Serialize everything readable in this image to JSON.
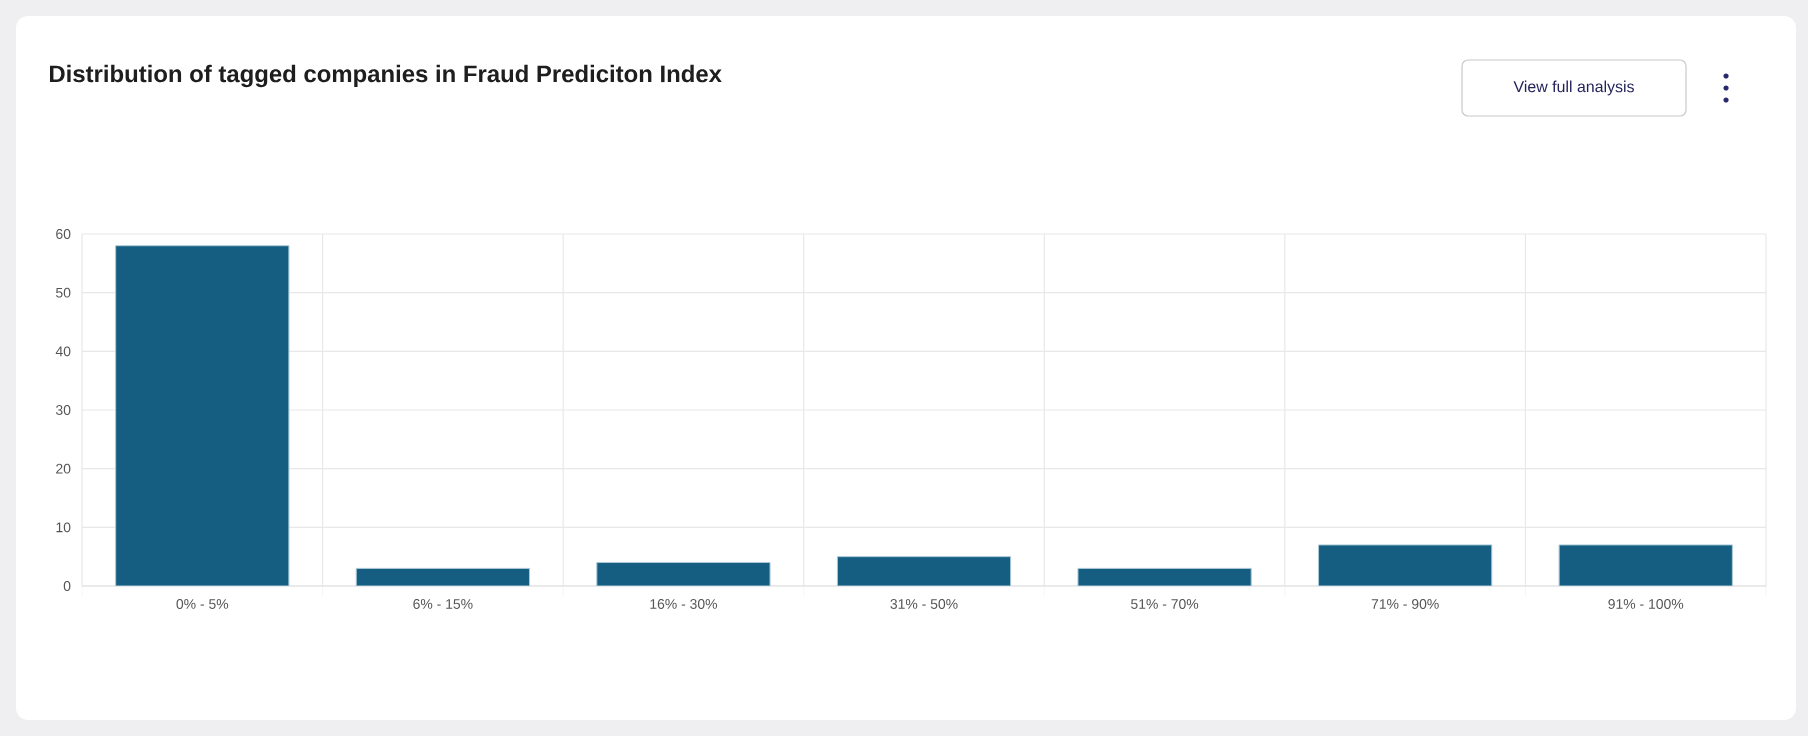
{
  "chart_data": {
    "type": "bar",
    "title": "Distribution of tagged companies in Fraud Prediciton Index",
    "categories": [
      "0% - 5%",
      "6% - 15%",
      "16% - 30%",
      "31% - 50%",
      "51% - 70%",
      "71% - 90%",
      "91% - 100%"
    ],
    "values": [
      58,
      3,
      4,
      5,
      3,
      7,
      7
    ],
    "color": "#155e82",
    "ylim": [
      0,
      60
    ],
    "yticks": [
      0,
      10,
      20,
      30,
      40,
      50,
      60
    ],
    "grid": true,
    "annotations": [
      "View full analysis"
    ]
  }
}
